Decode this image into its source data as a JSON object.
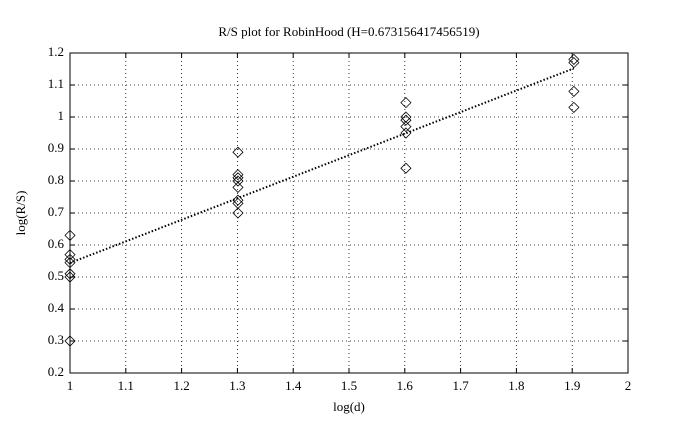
{
  "chart_data": {
    "type": "scatter",
    "title": "R/S plot for RobinHood (H=0.673156417456519)",
    "x_label": "log(d)",
    "y_label": "log(R/S)",
    "xlim": [
      1,
      2
    ],
    "ylim": [
      0.2,
      1.2
    ],
    "xticks": [
      1,
      1.1,
      1.2,
      1.3,
      1.4,
      1.5,
      1.6,
      1.7,
      1.8,
      1.9,
      2
    ],
    "yticks": [
      0.2,
      0.3,
      0.4,
      0.5,
      0.6,
      0.7,
      0.8,
      0.9,
      1,
      1.1,
      1.2
    ],
    "grid": true,
    "series": [
      {
        "color": "#000000",
        "marker": "diamond",
        "x": [
          1,
          1,
          1,
          1,
          1,
          1,
          1,
          1.301,
          1.301,
          1.301,
          1.301,
          1.301,
          1.301,
          1.301,
          1.301,
          1.602,
          1.602,
          1.602,
          1.602,
          1.602,
          1.602,
          1.903,
          1.903,
          1.903,
          1.903
        ],
        "values": [
          0.63,
          0.57,
          0.555,
          0.545,
          0.51,
          0.5,
          0.3,
          0.89,
          0.82,
          0.81,
          0.8,
          0.78,
          0.74,
          0.73,
          0.7,
          1.045,
          1.0,
          0.99,
          0.97,
          0.95,
          0.84,
          1.18,
          1.17,
          1.08,
          1.03
        ]
      },
      {
        "color": "#000000",
        "marker": "dotted-line",
        "x": [
          1,
          1.903
        ],
        "values": [
          0.544,
          1.152
        ]
      }
    ]
  }
}
